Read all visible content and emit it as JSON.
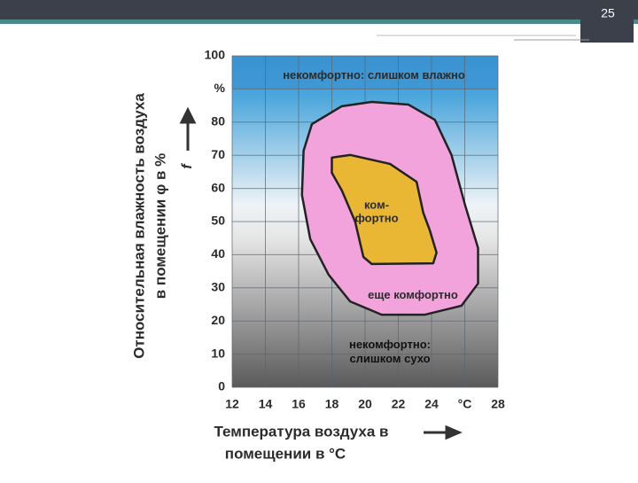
{
  "slide_number": "25",
  "chart_data": {
    "type": "region",
    "x_label_lines": [
      "Температура воздуха в",
      "помещении в °С"
    ],
    "y_label_lines": [
      "Относительная влажность воздуха",
      "в помещении φ в %"
    ],
    "y_arrow_label": "f",
    "annotations": [
      "некомфортно: слишком влажно",
      "некомфортно:\nслишком сухо"
    ],
    "series": [
      {
        "name": "еще комфортно",
        "color": "#f2a3dc",
        "x": [
          16.8,
          18.6,
          20.4,
          22.6,
          24.2,
          25.2,
          26.0,
          26.8,
          26.8,
          25.8,
          23.6,
          21.0,
          19.1,
          17.8,
          16.7,
          16.2,
          16.3
        ],
        "values": [
          79.4,
          84.8,
          86.1,
          85.3,
          80.7,
          70.1,
          55.3,
          42.0,
          31.3,
          24.6,
          21.9,
          21.9,
          25.9,
          34.0,
          44.7,
          58.0,
          71.4
        ]
      },
      {
        "name": "ком-\nфортно",
        "color": "#e9b733",
        "x": [
          18.0,
          19.1,
          21.5,
          23.1,
          23.5,
          23.9,
          24.3,
          24.1,
          20.4,
          19.9,
          19.4,
          18.6,
          18.0
        ],
        "values": [
          69.3,
          70.1,
          67.4,
          62.0,
          52.7,
          47.3,
          40.6,
          37.4,
          37.2,
          39.3,
          50.0,
          59.4,
          64.7
        ]
      }
    ],
    "xlim": [
      12,
      28
    ],
    "xticks": [
      12,
      14,
      16,
      18,
      20,
      22,
      24,
      {
        "value": 26,
        "label": "°C"
      },
      28
    ],
    "ylim": [
      0,
      100
    ],
    "yticks": [
      0,
      10,
      20,
      30,
      40,
      50,
      60,
      70,
      80,
      {
        "value": 90,
        "label": "%"
      },
      100
    ],
    "grid": true
  }
}
